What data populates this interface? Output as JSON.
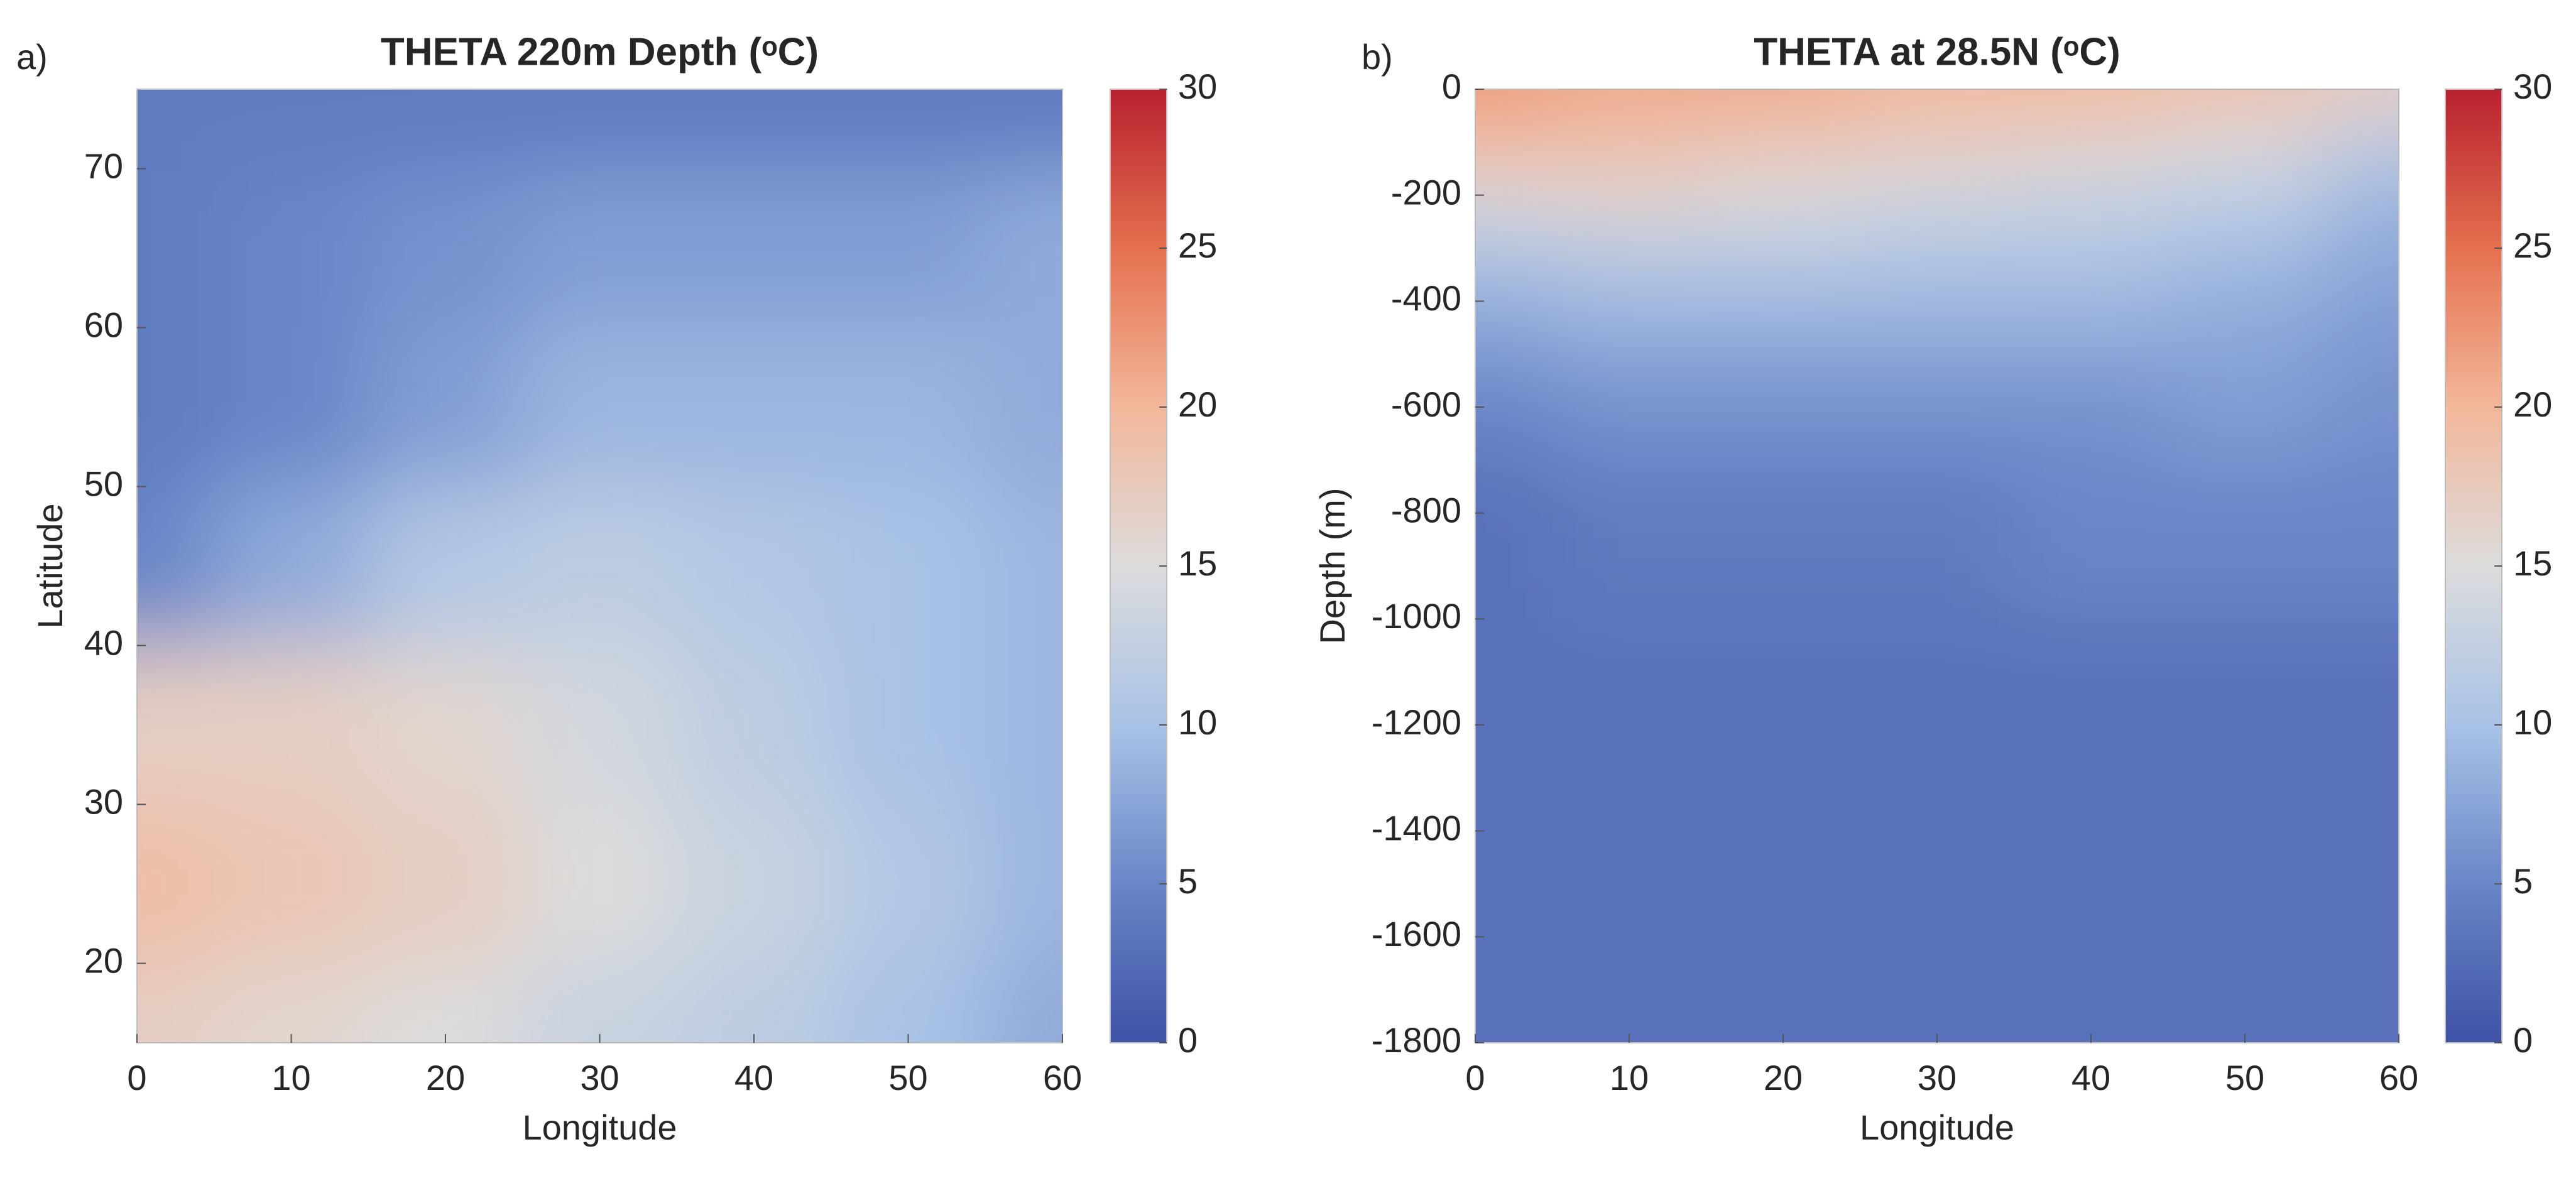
{
  "chart_data": [
    {
      "type": "heatmap",
      "panel_label": "a)",
      "title": "THETA 220m Depth (ᵒC)",
      "x_label": "Longitude",
      "y_label": "Latitude",
      "x": [
        0,
        10,
        20,
        30,
        40,
        50,
        60
      ],
      "y": [
        75,
        65,
        55,
        45,
        35,
        25,
        15
      ],
      "values": [
        [
          4,
          4,
          4,
          4,
          4,
          4,
          4
        ],
        [
          4,
          5,
          6,
          7,
          7,
          7,
          8
        ],
        [
          4,
          5,
          7,
          9,
          9,
          9,
          8
        ],
        [
          5,
          8,
          11,
          12,
          11,
          10,
          9
        ],
        [
          17,
          17,
          16,
          14,
          12,
          10,
          9
        ],
        [
          19,
          18,
          17,
          15,
          13,
          11,
          9
        ],
        [
          17,
          16,
          15,
          13,
          12,
          10,
          8
        ]
      ],
      "xlim": [
        0,
        60
      ],
      "ylim": [
        15,
        75
      ],
      "xticks": [
        0,
        10,
        20,
        30,
        40,
        50,
        60
      ],
      "yticks": [
        20,
        30,
        40,
        50,
        60,
        70
      ],
      "clim": [
        0,
        30
      ],
      "cticks": [
        0,
        5,
        10,
        15,
        20,
        25,
        30
      ],
      "colormap": [
        "#3f51a5",
        "#6a86c8",
        "#a9c2e6",
        "#dcdcdc",
        "#f3b79a",
        "#e5704f",
        "#b8202f"
      ]
    },
    {
      "type": "heatmap",
      "panel_label": "b)",
      "title": "THETA at 28.5N (ᵒC)",
      "x_label": "Longitude",
      "y_label": "Depth (m)",
      "x": [
        0,
        10,
        20,
        30,
        40,
        50,
        60
      ],
      "y": [
        0,
        -100,
        -200,
        -300,
        -400,
        -600,
        -800,
        -1200,
        -1800
      ],
      "values": [
        [
          22,
          21,
          21,
          20,
          20,
          19,
          17
        ],
        [
          20,
          19,
          18,
          17,
          16,
          15,
          12
        ],
        [
          15,
          16,
          15,
          14,
          13,
          12,
          9
        ],
        [
          11,
          12,
          12,
          11,
          11,
          10,
          8
        ],
        [
          8,
          9,
          9,
          9,
          9,
          8,
          7
        ],
        [
          5,
          6,
          6,
          6,
          6,
          7,
          6
        ],
        [
          3,
          4,
          4,
          4,
          5,
          5,
          5
        ],
        [
          3,
          3,
          3,
          3,
          3,
          3,
          3
        ],
        [
          3,
          3,
          3,
          3,
          3,
          3,
          3
        ]
      ],
      "xlim": [
        0,
        60
      ],
      "ylim": [
        -1800,
        0
      ],
      "xticks": [
        0,
        10,
        20,
        30,
        40,
        50,
        60
      ],
      "yticks": [
        -1800,
        -1600,
        -1400,
        -1200,
        -1000,
        -800,
        -600,
        -400,
        -200,
        0
      ],
      "clim": [
        0,
        30
      ],
      "cticks": [
        0,
        5,
        10,
        15,
        20,
        25,
        30
      ],
      "colormap": [
        "#3f51a5",
        "#6a86c8",
        "#a9c2e6",
        "#dcdcdc",
        "#f3b79a",
        "#e5704f",
        "#b8202f"
      ]
    }
  ]
}
